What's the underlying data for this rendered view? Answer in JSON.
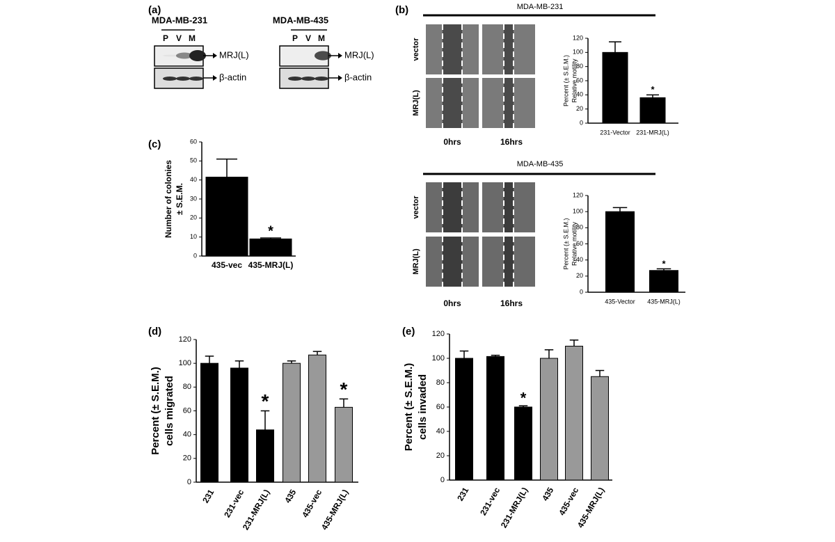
{
  "panel_labels": [
    "(a)",
    "(b)",
    "(c)",
    "(d)",
    "(e)"
  ],
  "blots": [
    {
      "title": "MDA-MB-231",
      "lanes": [
        "P",
        "V",
        "M"
      ],
      "bands": [
        "MRJ(L)",
        "β-actin"
      ]
    },
    {
      "title": "MDA-MB-435",
      "lanes": [
        "P",
        "V",
        "M"
      ],
      "bands": [
        "MRJ(L)",
        "β-actin"
      ]
    }
  ],
  "wound_assays": [
    {
      "title": "MDA-MB-231",
      "rows": [
        "vector",
        "MRJ(L)"
      ],
      "times": [
        "0hrs",
        "16hrs"
      ]
    },
    {
      "title": "MDA-MB-435",
      "rows": [
        "vector",
        "MRJ(L)"
      ],
      "times": [
        "0hrs",
        "16hrs"
      ]
    }
  ],
  "chart_data": [
    {
      "type": "bar",
      "ylabel": [
        "Percent (± S.E.M.)",
        "Relative motility"
      ],
      "categories": [
        "231-Vector",
        "231-MRJ(L)"
      ],
      "values": [
        100,
        36
      ],
      "errors": [
        15,
        4
      ],
      "colors": [
        "#000000",
        "#000000"
      ],
      "significance": [
        null,
        "*"
      ],
      "ylim": [
        0,
        120
      ],
      "yticks": [
        0,
        20,
        40,
        60,
        80,
        100,
        120
      ]
    },
    {
      "type": "bar",
      "ylabel": [
        "Percent (± S.E.M.)",
        "Relative motility"
      ],
      "categories": [
        "435-Vector",
        "435-MRJ(L)"
      ],
      "values": [
        100,
        27
      ],
      "errors": [
        5,
        2
      ],
      "colors": [
        "#000000",
        "#000000"
      ],
      "significance": [
        null,
        "*"
      ],
      "ylim": [
        0,
        120
      ],
      "yticks": [
        0,
        20,
        40,
        60,
        80,
        100,
        120
      ]
    },
    {
      "type": "bar",
      "ylabel": [
        "Number of colonies",
        "± S.E.M."
      ],
      "categories": [
        "435-vec",
        "435-MRJ(L)"
      ],
      "values": [
        41.5,
        9
      ],
      "errors": [
        9.5,
        0.5
      ],
      "colors": [
        "#000000",
        "#000000"
      ],
      "significance": [
        null,
        "*"
      ],
      "ylim": [
        0,
        60
      ],
      "yticks": [
        0,
        10,
        20,
        30,
        40,
        50,
        60
      ]
    },
    {
      "type": "bar",
      "ylabel": [
        "Percent (± S.E.M.)",
        "cells migrated"
      ],
      "categories": [
        "231",
        "231-vec",
        "231-MRJ(L)",
        "435",
        "435-vec",
        "435-MRJ(L)"
      ],
      "values": [
        100,
        96,
        44,
        100,
        107,
        63
      ],
      "errors": [
        6,
        6,
        16,
        2,
        3,
        7
      ],
      "colors": [
        "#000000",
        "#000000",
        "#000000",
        "#999999",
        "#999999",
        "#999999"
      ],
      "significance": [
        null,
        null,
        "*",
        null,
        null,
        "*"
      ],
      "ylim": [
        0,
        120
      ],
      "yticks": [
        0,
        20,
        40,
        60,
        80,
        100,
        120
      ]
    },
    {
      "type": "bar",
      "ylabel": [
        "Percent (± S.E.M.)",
        "cells invaded"
      ],
      "categories": [
        "231",
        "231-vec",
        "231-MRJ(L)",
        "435",
        "435-vec",
        "435-MRJ(L)"
      ],
      "values": [
        100,
        101.5,
        60,
        100,
        110,
        85
      ],
      "errors": [
        6,
        1,
        1,
        7,
        5,
        5
      ],
      "colors": [
        "#000000",
        "#000000",
        "#000000",
        "#999999",
        "#999999",
        "#999999"
      ],
      "significance": [
        null,
        null,
        "*",
        null,
        null,
        null
      ],
      "ylim": [
        0,
        120
      ],
      "yticks": [
        0,
        20,
        40,
        60,
        80,
        100,
        120
      ]
    }
  ]
}
